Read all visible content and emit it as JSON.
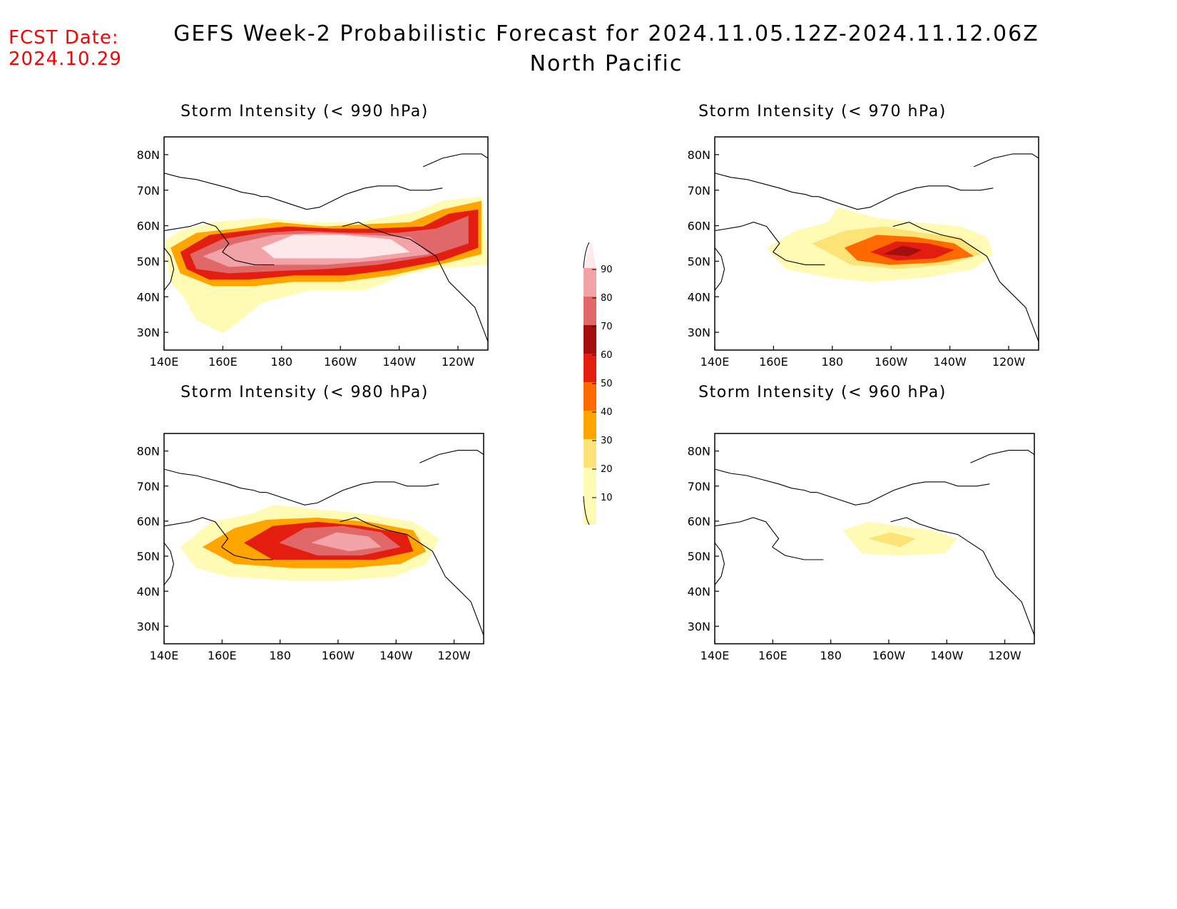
{
  "forecast": {
    "label": "FCST Date:",
    "date": "2024.10.29"
  },
  "title": {
    "line1": "GEFS Week-2 Probabilistic Forecast for 2024.11.05.12Z-2024.11.12.06Z",
    "line2": "North Pacific"
  },
  "axes": {
    "lat_ticks": [
      "80N",
      "70N",
      "60N",
      "50N",
      "40N",
      "30N"
    ],
    "lon_ticks": [
      "140E",
      "160E",
      "180",
      "160W",
      "140W",
      "120W"
    ]
  },
  "panels": [
    {
      "title": "Storm Intensity (< 990 hPa)",
      "threshold_hpa": 990,
      "max_probability": 90
    },
    {
      "title": "Storm Intensity (< 970 hPa)",
      "threshold_hpa": 970,
      "max_probability": 60
    },
    {
      "title": "Storm Intensity (< 980 hPa)",
      "threshold_hpa": 980,
      "max_probability": 80
    },
    {
      "title": "Storm Intensity (< 960 hPa)",
      "threshold_hpa": 960,
      "max_probability": 20
    }
  ],
  "colorbar": {
    "labels": [
      "90",
      "80",
      "70",
      "60",
      "50",
      "40",
      "30",
      "20",
      "10"
    ],
    "colors": [
      "#fde8ea",
      "#f2a3a8",
      "#e06868",
      "#a30f0f",
      "#e31d0f",
      "#ff6a00",
      "#ffa500",
      "#fde275",
      "#fffab4"
    ]
  }
}
